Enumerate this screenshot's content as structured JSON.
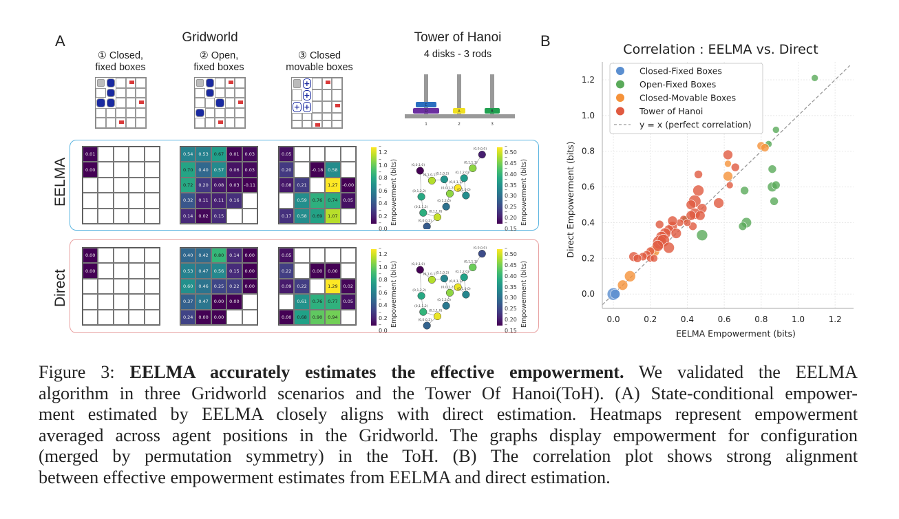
{
  "panel_a": {
    "letter": "A",
    "gridworld_title": "Gridworld",
    "scenarios": [
      {
        "number": "①",
        "line1": "Closed,",
        "line2": "fixed boxes"
      },
      {
        "number": "②",
        "line1": "Open,",
        "line2": "fixed boxes"
      },
      {
        "number": "③",
        "line1": "Closed",
        "line2": "movable boxes"
      }
    ],
    "toh_title": "Tower of Hanoi",
    "toh_subtitle": "4 disks - 3 rods",
    "toh_rods": [
      "1",
      "2",
      "3"
    ],
    "toh_disks": [
      {
        "label": "D",
        "rod": 1,
        "color": "#6b2fa0"
      },
      {
        "label": "C",
        "rod": 1,
        "color": "#2a6fc0"
      },
      {
        "label": "A",
        "rod": 2,
        "color": "#f0e020"
      },
      {
        "label": "B",
        "rod": 3,
        "color": "#21a050"
      }
    ],
    "row_labels": [
      "EELMA",
      "Direct"
    ],
    "row_colors": {
      "EELMA": "#5ab4e0",
      "Direct": "#e8a0a0"
    },
    "colorbar_label": "Empowerment (bits)",
    "heatmap_colorbar_ticks": [
      "1.2",
      "1.0",
      "0.8",
      "0.6",
      "0.4",
      "0.2",
      "0.0"
    ],
    "graph_colorbar_ticks": [
      "0.50",
      "0.45",
      "0.40",
      "0.35",
      "0.30",
      "0.25",
      "0.20",
      "0.15"
    ],
    "heatmaps": {
      "EELMA": {
        "closed_fixed": [
          [
            "0.01",
            null,
            null,
            null,
            null
          ],
          [
            "0.00",
            null,
            null,
            null,
            null
          ],
          [
            null,
            null,
            null,
            null,
            null
          ],
          [
            null,
            null,
            null,
            null,
            null
          ],
          [
            null,
            null,
            null,
            null,
            null
          ]
        ],
        "open_fixed": [
          [
            "0.54",
            "0.53",
            "0.67",
            "0.01",
            "0.03"
          ],
          [
            "0.70",
            "0.40",
            "0.57",
            "0.06",
            "0.03"
          ],
          [
            "0.72",
            "0.20",
            "0.08",
            "0.03",
            "-0.11"
          ],
          [
            "0.32",
            "0.11",
            "0.11",
            "0.16",
            null
          ],
          [
            "0.14",
            "0.02",
            "0.15",
            null,
            null
          ]
        ],
        "closed_movable": [
          [
            "0.05",
            null,
            null,
            null,
            null
          ],
          [
            "0.20",
            null,
            "-0.18",
            "0.58",
            null
          ],
          [
            "0.08",
            "0.21",
            null,
            "1.27",
            "-0.00"
          ],
          [
            null,
            "0.59",
            "0.76",
            "0.74",
            "0.05"
          ],
          [
            "0.17",
            "0.58",
            "0.69",
            "1.07",
            null
          ]
        ]
      },
      "Direct": {
        "closed_fixed": [
          [
            "0.00",
            null,
            null,
            null,
            null
          ],
          [
            "0.00",
            null,
            null,
            null,
            null
          ],
          [
            null,
            null,
            null,
            null,
            null
          ],
          [
            null,
            null,
            null,
            null,
            null
          ],
          [
            null,
            null,
            null,
            null,
            null
          ]
        ],
        "open_fixed": [
          [
            "0.40",
            "0.42",
            "0.80",
            "0.14",
            "0.00"
          ],
          [
            "0.53",
            "0.47",
            "0.56",
            "0.15",
            "0.00"
          ],
          [
            "0.60",
            "0.46",
            "0.25",
            "0.22",
            "0.00"
          ],
          [
            "0.37",
            "0.47",
            "0.00",
            "0.00",
            null
          ],
          [
            "0.24",
            "0.00",
            "0.00",
            null,
            null
          ]
        ],
        "closed_movable": [
          [
            "0.05",
            null,
            null,
            null,
            null
          ],
          [
            "0.22",
            null,
            "0.00",
            "0.00",
            null
          ],
          [
            "0.09",
            "0.22",
            null,
            "1.29",
            "0.02"
          ],
          [
            null,
            "0.61",
            "0.76",
            "0.77",
            "0.05"
          ],
          [
            "0.00",
            "0.68",
            "0.90",
            "0.94",
            null
          ]
        ]
      }
    },
    "toh_graph": {
      "EELMA": [
        {
          "label": "(0,0,0,0)",
          "value": 0.18
        },
        {
          "label": "(0,1,1,1)",
          "value": 0.44
        },
        {
          "label": "(0,1,2,0)",
          "value": 0.34
        },
        {
          "label": "(0,0,1,1)",
          "value": 0.5
        },
        {
          "label": "(0,1,0,0)",
          "value": 0.32
        },
        {
          "label": "(0,0,1,2)",
          "value": 0.44
        },
        {
          "label": "(0,1,0,2)",
          "value": 0.33
        },
        {
          "label": "(0,1,2,0)",
          "value": 0.28
        },
        {
          "label": "(0,1,0,1)",
          "value": 0.46
        },
        {
          "label": "(0,0,1,0)",
          "value": 0.15
        },
        {
          "label": "(0,1,2,2)",
          "value": 0.36
        },
        {
          "label": "(0,1,1,2)",
          "value": 0.37
        },
        {
          "label": "(0,1,1,0)",
          "value": 0.47
        },
        {
          "label": "(0,0,0,2)",
          "value": 0.25
        }
      ],
      "Direct": [
        {
          "label": "(0,0,0,0)",
          "value": 0.23
        },
        {
          "label": "(0,1,1,1)",
          "value": 0.42
        },
        {
          "label": "(0,1,2,0)",
          "value": 0.35
        },
        {
          "label": "(0,0,1,1)",
          "value": 0.49
        },
        {
          "label": "(0,1,0,0)",
          "value": 0.31
        },
        {
          "label": "(0,0,1,2)",
          "value": 0.44
        },
        {
          "label": "(0,1,0,2)",
          "value": 0.31
        },
        {
          "label": "(0,1,2,0)",
          "value": 0.29
        },
        {
          "label": "(0,1,0,1)",
          "value": 0.46
        },
        {
          "label": "(0,0,1,0)",
          "value": 0.15
        },
        {
          "label": "(0,1,2,2)",
          "value": 0.36
        },
        {
          "label": "(0,1,1,2)",
          "value": 0.38
        },
        {
          "label": "(0,1,1,0)",
          "value": 0.49
        },
        {
          "label": "(0,0,0,2)",
          "value": 0.26
        }
      ]
    }
  },
  "panel_b": {
    "letter": "B"
  },
  "chart_data": {
    "type": "scatter",
    "title": "Correlation : EELMA vs. Direct",
    "xlabel": "EELMA Empowerment (bits)",
    "ylabel": "Direct Empowerment (bits)",
    "xlim": [
      -0.06,
      1.3
    ],
    "ylim": [
      -0.08,
      1.3
    ],
    "xticks": [
      "0.0",
      "0.2",
      "0.4",
      "0.6",
      "0.8",
      "1.0",
      "1.2"
    ],
    "yticks": [
      "0.0",
      "0.2",
      "0.4",
      "0.6",
      "0.8",
      "1.0",
      "1.2"
    ],
    "grid": true,
    "legend_position": "top-left",
    "reference_line": {
      "label": "y = x (perfect correlation)",
      "color": "#999999"
    },
    "series": [
      {
        "name": "Closed-Fixed Boxes",
        "color": "#5b8fd0",
        "points": [
          [
            0.0,
            0.0,
            3
          ],
          [
            0.01,
            0.0,
            2
          ]
        ]
      },
      {
        "name": "Open-Fixed Boxes",
        "color": "#5aaa5a",
        "points": [
          [
            1.09,
            1.21,
            1
          ],
          [
            0.88,
            0.92,
            1
          ],
          [
            0.84,
            0.84,
            1
          ],
          [
            0.86,
            0.7,
            1.5
          ],
          [
            0.86,
            0.6,
            2
          ],
          [
            0.88,
            0.61,
            1.5
          ],
          [
            0.87,
            0.52,
            1.5
          ],
          [
            0.71,
            0.58,
            1.5
          ],
          [
            0.72,
            0.4,
            2.2
          ],
          [
            0.7,
            0.38,
            1.5
          ],
          [
            0.48,
            0.33,
            2.5
          ],
          [
            0.39,
            0.42,
            1
          ]
        ]
      },
      {
        "name": "Closed-Movable Boxes",
        "color": "#f5923a",
        "points": [
          [
            0.8,
            0.83,
            1.5
          ],
          [
            0.82,
            0.82,
            1.5
          ],
          [
            0.62,
            0.73,
            1
          ],
          [
            0.62,
            0.66,
            2
          ],
          [
            0.22,
            0.24,
            2.5
          ],
          [
            0.09,
            0.1,
            2.5
          ],
          [
            0.05,
            0.05,
            2.2
          ]
        ]
      },
      {
        "name": "Tower of Hanoi",
        "color": "#e05a40",
        "points": [
          [
            0.62,
            0.78,
            2
          ],
          [
            0.66,
            0.71,
            1.5
          ],
          [
            0.46,
            0.67,
            1.5
          ],
          [
            0.63,
            0.61,
            1
          ],
          [
            0.46,
            0.58,
            2.5
          ],
          [
            0.57,
            0.51,
            2.2
          ],
          [
            0.44,
            0.52,
            3
          ],
          [
            0.42,
            0.5,
            2
          ],
          [
            0.48,
            0.48,
            2
          ],
          [
            0.44,
            0.45,
            2.5
          ],
          [
            0.42,
            0.44,
            2
          ],
          [
            0.47,
            0.44,
            2
          ],
          [
            0.43,
            0.38,
            1.5
          ],
          [
            0.38,
            0.42,
            1.2
          ],
          [
            0.36,
            0.4,
            1.2
          ],
          [
            0.4,
            0.4,
            1.2
          ],
          [
            0.32,
            0.38,
            2
          ],
          [
            0.3,
            0.36,
            2
          ],
          [
            0.28,
            0.34,
            2.5
          ],
          [
            0.26,
            0.32,
            2.5
          ],
          [
            0.25,
            0.29,
            3.5
          ],
          [
            0.27,
            0.3,
            3
          ],
          [
            0.24,
            0.27,
            2.5
          ],
          [
            0.3,
            0.26,
            2.5
          ],
          [
            0.34,
            0.34,
            2.2
          ],
          [
            0.2,
            0.24,
            1.5
          ],
          [
            0.18,
            0.22,
            1.5
          ],
          [
            0.16,
            0.21,
            1.5
          ],
          [
            0.11,
            0.21,
            2
          ],
          [
            0.13,
            0.2,
            1.5
          ],
          [
            0.2,
            0.2,
            1.2
          ],
          [
            0.22,
            0.2,
            1.2
          ],
          [
            0.25,
            0.39,
            1.5
          ],
          [
            0.32,
            0.41,
            2
          ]
        ]
      }
    ]
  },
  "caption": {
    "label": "Figure 3: ",
    "bold": "EELMA accurately estimates the effective empowerment.",
    "lines": [
      " We validated the EELMA",
      "algorithm in three Gridworld scenarios and the Tower Of Hanoi(ToH). (A) State-conditional empower-",
      "ment estimated by EELMA closely aligns with direct estimation. Heatmaps represent empowerment",
      "averaged across agent positions in the Gridworld. The graphs display empowerment for configuration",
      "(merged by permutation symmetry) in the ToH. (B) The correlation plot shows strong alignment",
      "between effective empowerment estimates from EELMA and direct estimation."
    ]
  }
}
